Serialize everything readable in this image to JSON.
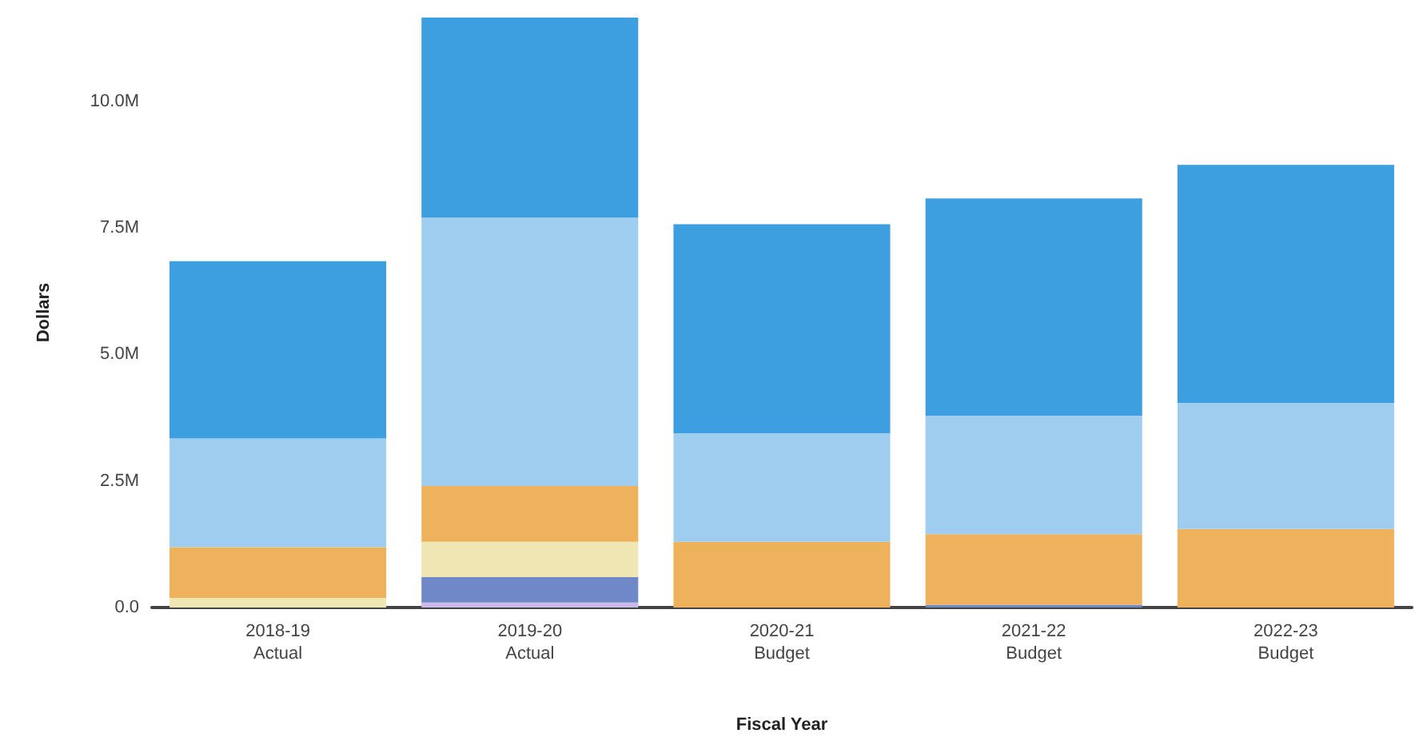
{
  "chart_data": {
    "type": "bar",
    "stacked": true,
    "xlabel": "Fiscal Year",
    "ylabel": "Dollars",
    "categories": [
      "2018-19\nActual",
      "2019-20\nActual",
      "2020-21\nBudget",
      "2021-22\nBudget",
      "2022-23\nBudget"
    ],
    "series": [
      {
        "color": "#c9b8e8",
        "values": [
          null,
          100000,
          null,
          null,
          null
        ]
      },
      {
        "color": "#6f88c8",
        "values": [
          null,
          500000,
          null,
          50000,
          null
        ]
      },
      {
        "color": "#efe6b4",
        "values": [
          190000,
          700000,
          null,
          null,
          null
        ]
      },
      {
        "color": "#eeb25c",
        "values": [
          1000000,
          1100000,
          1300000,
          1400000,
          1550000
        ]
      },
      {
        "color": "#9fcdf0",
        "values": [
          2150000,
          5300000,
          2140000,
          2340000,
          2490000
        ]
      },
      {
        "color": "#3d9fdf",
        "values": [
          3500000,
          3950000,
          4130000,
          4290000,
          4700000
        ]
      }
    ],
    "yticks": [
      {
        "value": 0,
        "label": "0.0"
      },
      {
        "value": 2500000,
        "label": "2.5M"
      },
      {
        "value": 5000000,
        "label": "5.0M"
      },
      {
        "value": 7500000,
        "label": "7.5M"
      },
      {
        "value": 10000000,
        "label": "10.0M"
      }
    ],
    "ylim": [
      0,
      11650000
    ],
    "grid": false
  }
}
